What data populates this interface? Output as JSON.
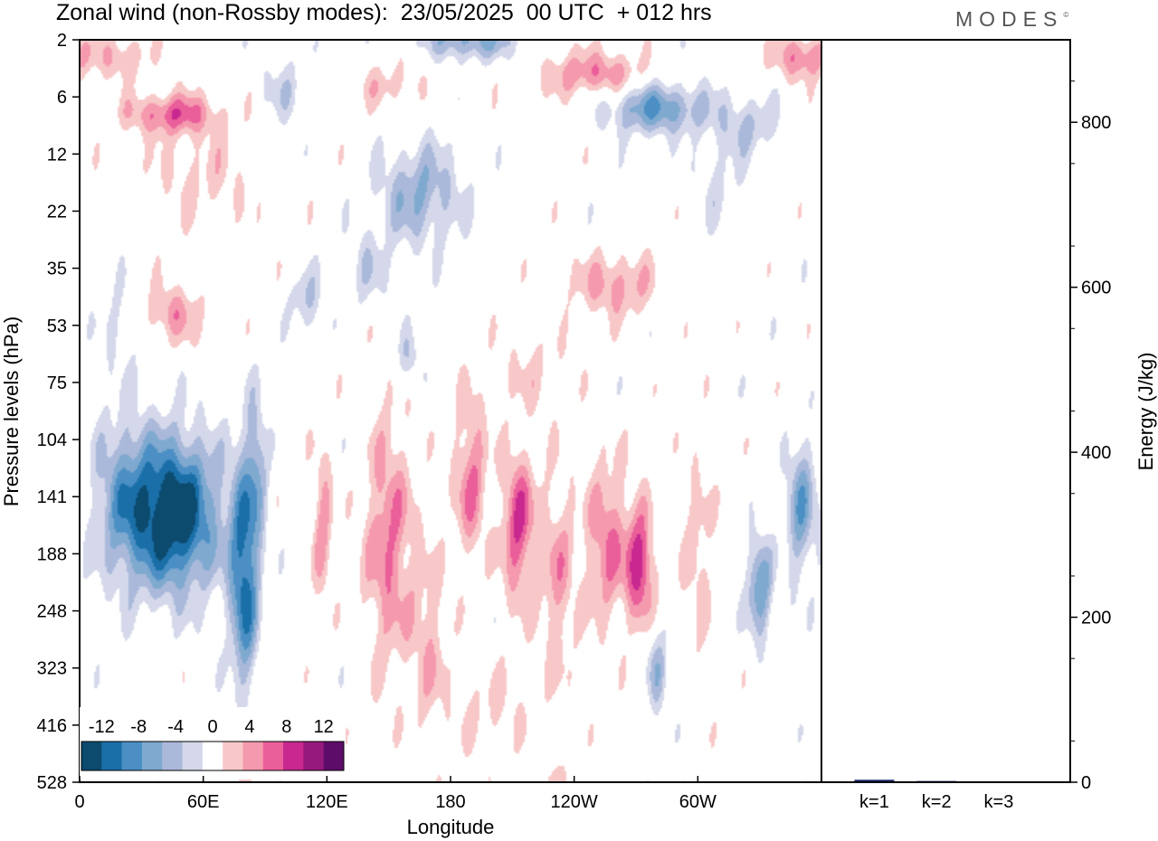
{
  "title": "Zonal wind (non-Rossby modes):  23/05/2025  00 UTC  + 012 hrs",
  "brand": "MODES",
  "brand_mark": "©",
  "colors": {
    "frame": "#000000",
    "bar_fill": "#1c2a6e",
    "neg": [
      "#0c4a6e",
      "#1a6fa8",
      "#4b8fc4",
      "#7fa9cf",
      "#aab9da",
      "#d4d8ea"
    ],
    "pos": [
      "#f8c8c8",
      "#f59aae",
      "#ea5e9a",
      "#c8288f",
      "#96197d",
      "#5e0c6a"
    ]
  },
  "chart_data": [
    {
      "type": "heatmap",
      "title": "Zonal wind (non-Rossby modes):  23/05/2025  00 UTC  + 012 hrs",
      "xlabel": "Longitude",
      "ylabel": "Pressure levels (hPa)",
      "x_ticks": [
        "0",
        "60E",
        "120E",
        "180",
        "120W",
        "60W"
      ],
      "x_tick_values": [
        0,
        60,
        120,
        180,
        240,
        300
      ],
      "xlim": [
        0,
        360
      ],
      "y_ticks": [
        "2",
        "6",
        "12",
        "22",
        "35",
        "53",
        "75",
        "104",
        "141",
        "188",
        "248",
        "323",
        "416",
        "528"
      ],
      "colorbar": {
        "labels": [
          "-12",
          "-8",
          "-4",
          "0",
          "4",
          "8",
          "12"
        ],
        "levels": [
          -12,
          -10,
          -8,
          -6,
          -4,
          -2,
          0,
          2,
          4,
          6,
          8,
          10,
          12
        ]
      },
      "blobs": [
        {
          "lon": 45,
          "lev": 8.3,
          "slon": 22,
          "slev": 1.3,
          "amp": -15
        },
        {
          "lon": 20,
          "lev": 8.0,
          "slon": 14,
          "slev": 1.5,
          "amp": -5
        },
        {
          "lon": 80,
          "lev": 9.4,
          "slon": 7,
          "slev": 2.0,
          "amp": -11
        },
        {
          "lon": 86,
          "lev": 7.4,
          "slon": 5,
          "slev": 1.2,
          "amp": -5
        },
        {
          "lon": 118,
          "lev": 8.5,
          "slon": 5,
          "slev": 1.3,
          "amp": 5
        },
        {
          "lon": 150,
          "lev": 8.8,
          "slon": 12,
          "slev": 2.2,
          "amp": 6
        },
        {
          "lon": 170,
          "lev": 10.6,
          "slon": 9,
          "slev": 1.6,
          "amp": 3.5
        },
        {
          "lon": 190,
          "lev": 7.7,
          "slon": 8,
          "slev": 1.4,
          "amp": 6
        },
        {
          "lon": 213,
          "lev": 8.5,
          "slon": 8,
          "slev": 1.3,
          "amp": 8
        },
        {
          "lon": 232,
          "lev": 9.4,
          "slon": 9,
          "slev": 1.8,
          "amp": 4.5
        },
        {
          "lon": 256,
          "lev": 8.8,
          "slon": 10,
          "slev": 1.4,
          "amp": 6
        },
        {
          "lon": 272,
          "lev": 9.2,
          "slon": 7,
          "slev": 1.0,
          "amp": 9
        },
        {
          "lon": 300,
          "lev": 9.0,
          "slon": 8,
          "slev": 1.8,
          "amp": 3
        },
        {
          "lon": 330,
          "lev": 9.6,
          "slon": 6,
          "slev": 0.9,
          "amp": -8
        },
        {
          "lon": 350,
          "lev": 8.2,
          "slon": 7,
          "slev": 1.3,
          "amp": -7
        },
        {
          "lon": 280,
          "lev": 11.0,
          "slon": 5,
          "slev": 0.8,
          "amp": -5
        },
        {
          "lon": 200,
          "lev": 11.8,
          "slon": 18,
          "slev": 0.8,
          "amp": 2.5
        },
        {
          "lon": 80,
          "lev": 12.5,
          "slon": 6,
          "slev": 0.8,
          "amp": 3
        },
        {
          "lon": 190,
          "lev": 0.0,
          "slon": 22,
          "slev": 0.35,
          "amp": -7
        },
        {
          "lon": 250,
          "lev": 0.6,
          "slon": 25,
          "slev": 0.4,
          "amp": 6
        },
        {
          "lon": 350,
          "lev": 0.3,
          "slon": 14,
          "slev": 0.4,
          "amp": 6
        },
        {
          "lon": 20,
          "lev": 0.3,
          "slon": 14,
          "slev": 0.4,
          "amp": 4
        },
        {
          "lon": 45,
          "lev": 1.3,
          "slon": 22,
          "slev": 0.35,
          "amp": 7
        },
        {
          "lon": 150,
          "lev": 0.8,
          "slon": 18,
          "slev": 0.4,
          "amp": 3
        },
        {
          "lon": 280,
          "lev": 1.2,
          "slon": 25,
          "slev": 0.45,
          "amp": -8
        },
        {
          "lon": 325,
          "lev": 1.5,
          "slon": 15,
          "slev": 0.5,
          "amp": -4
        },
        {
          "lon": 165,
          "lev": 2.7,
          "slon": 20,
          "slev": 0.9,
          "amp": -6
        },
        {
          "lon": 140,
          "lev": 4.0,
          "slon": 10,
          "slev": 0.7,
          "amp": -3
        },
        {
          "lon": 110,
          "lev": 4.6,
          "slon": 8,
          "slev": 0.6,
          "amp": -4
        },
        {
          "lon": 60,
          "lev": 2.4,
          "slon": 28,
          "slev": 0.9,
          "amp": 2.5
        },
        {
          "lon": 45,
          "lev": 4.8,
          "slon": 14,
          "slev": 0.5,
          "amp": 5
        },
        {
          "lon": 260,
          "lev": 4.3,
          "slon": 20,
          "slev": 0.55,
          "amp": 5
        },
        {
          "lon": 220,
          "lev": 5.8,
          "slon": 18,
          "slev": 0.7,
          "amp": 2.2
        },
        {
          "lon": 160,
          "lev": 5.6,
          "slon": 6,
          "slev": 0.5,
          "amp": -4
        },
        {
          "lon": 20,
          "lev": 5.0,
          "slon": 10,
          "slev": 0.8,
          "amp": -2.5
        },
        {
          "lon": 310,
          "lev": 2.5,
          "slon": 12,
          "slev": 0.8,
          "amp": -2.5
        },
        {
          "lon": 100,
          "lev": 0.9,
          "slon": 12,
          "slev": 0.6,
          "amp": -3
        },
        {
          "lon": 230,
          "lev": 13.0,
          "slon": 6,
          "slev": 0.4,
          "amp": 2.5
        }
      ]
    },
    {
      "type": "bar",
      "ylabel": "Energy (J/kg)",
      "categories": [
        "k=1",
        "k=2",
        "k=3"
      ],
      "values": [
        3,
        1.5,
        1
      ],
      "ylim": [
        0,
        900
      ],
      "y_ticks": [
        "0",
        "200",
        "400",
        "600",
        "800"
      ],
      "y_tick_values": [
        0,
        200,
        400,
        600,
        800
      ]
    }
  ]
}
